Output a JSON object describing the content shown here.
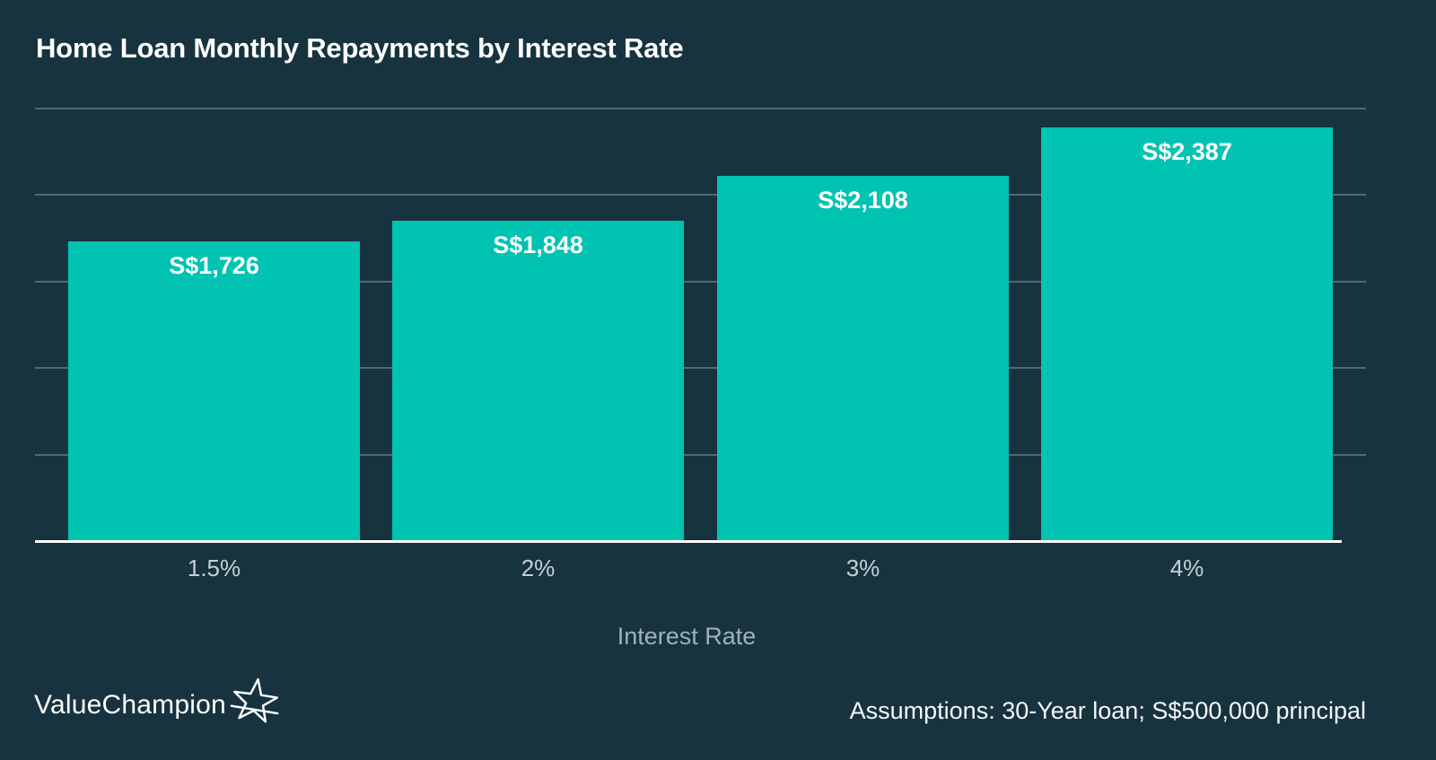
{
  "title": "Home Loan Monthly Repayments by Interest Rate",
  "chart_data": {
    "type": "bar",
    "categories": [
      "1.5%",
      "2%",
      "3%",
      "4%"
    ],
    "values": [
      1726,
      1848,
      2108,
      2387
    ],
    "value_labels": [
      "S$1,726",
      "S$1,848",
      "S$2,108",
      "S$2,387"
    ],
    "title": "Home Loan Monthly Repayments by Interest Rate",
    "xlabel": "Interest Rate",
    "ylabel": "",
    "ylim": [
      0,
      2500
    ],
    "gridline_step": 500,
    "grid": true,
    "legend": false,
    "y_tick_labels_shown": false,
    "bar_color": "#00C3B2",
    "background_color": "#17333F",
    "axis_line_color": "#FFFFFF",
    "gridline_color": "#7A8F98"
  },
  "footer": {
    "brand": "ValueChampion",
    "brand_icon": "star-swoosh-icon",
    "assumptions": "Assumptions: 30-Year loan; S$500,000 principal"
  }
}
